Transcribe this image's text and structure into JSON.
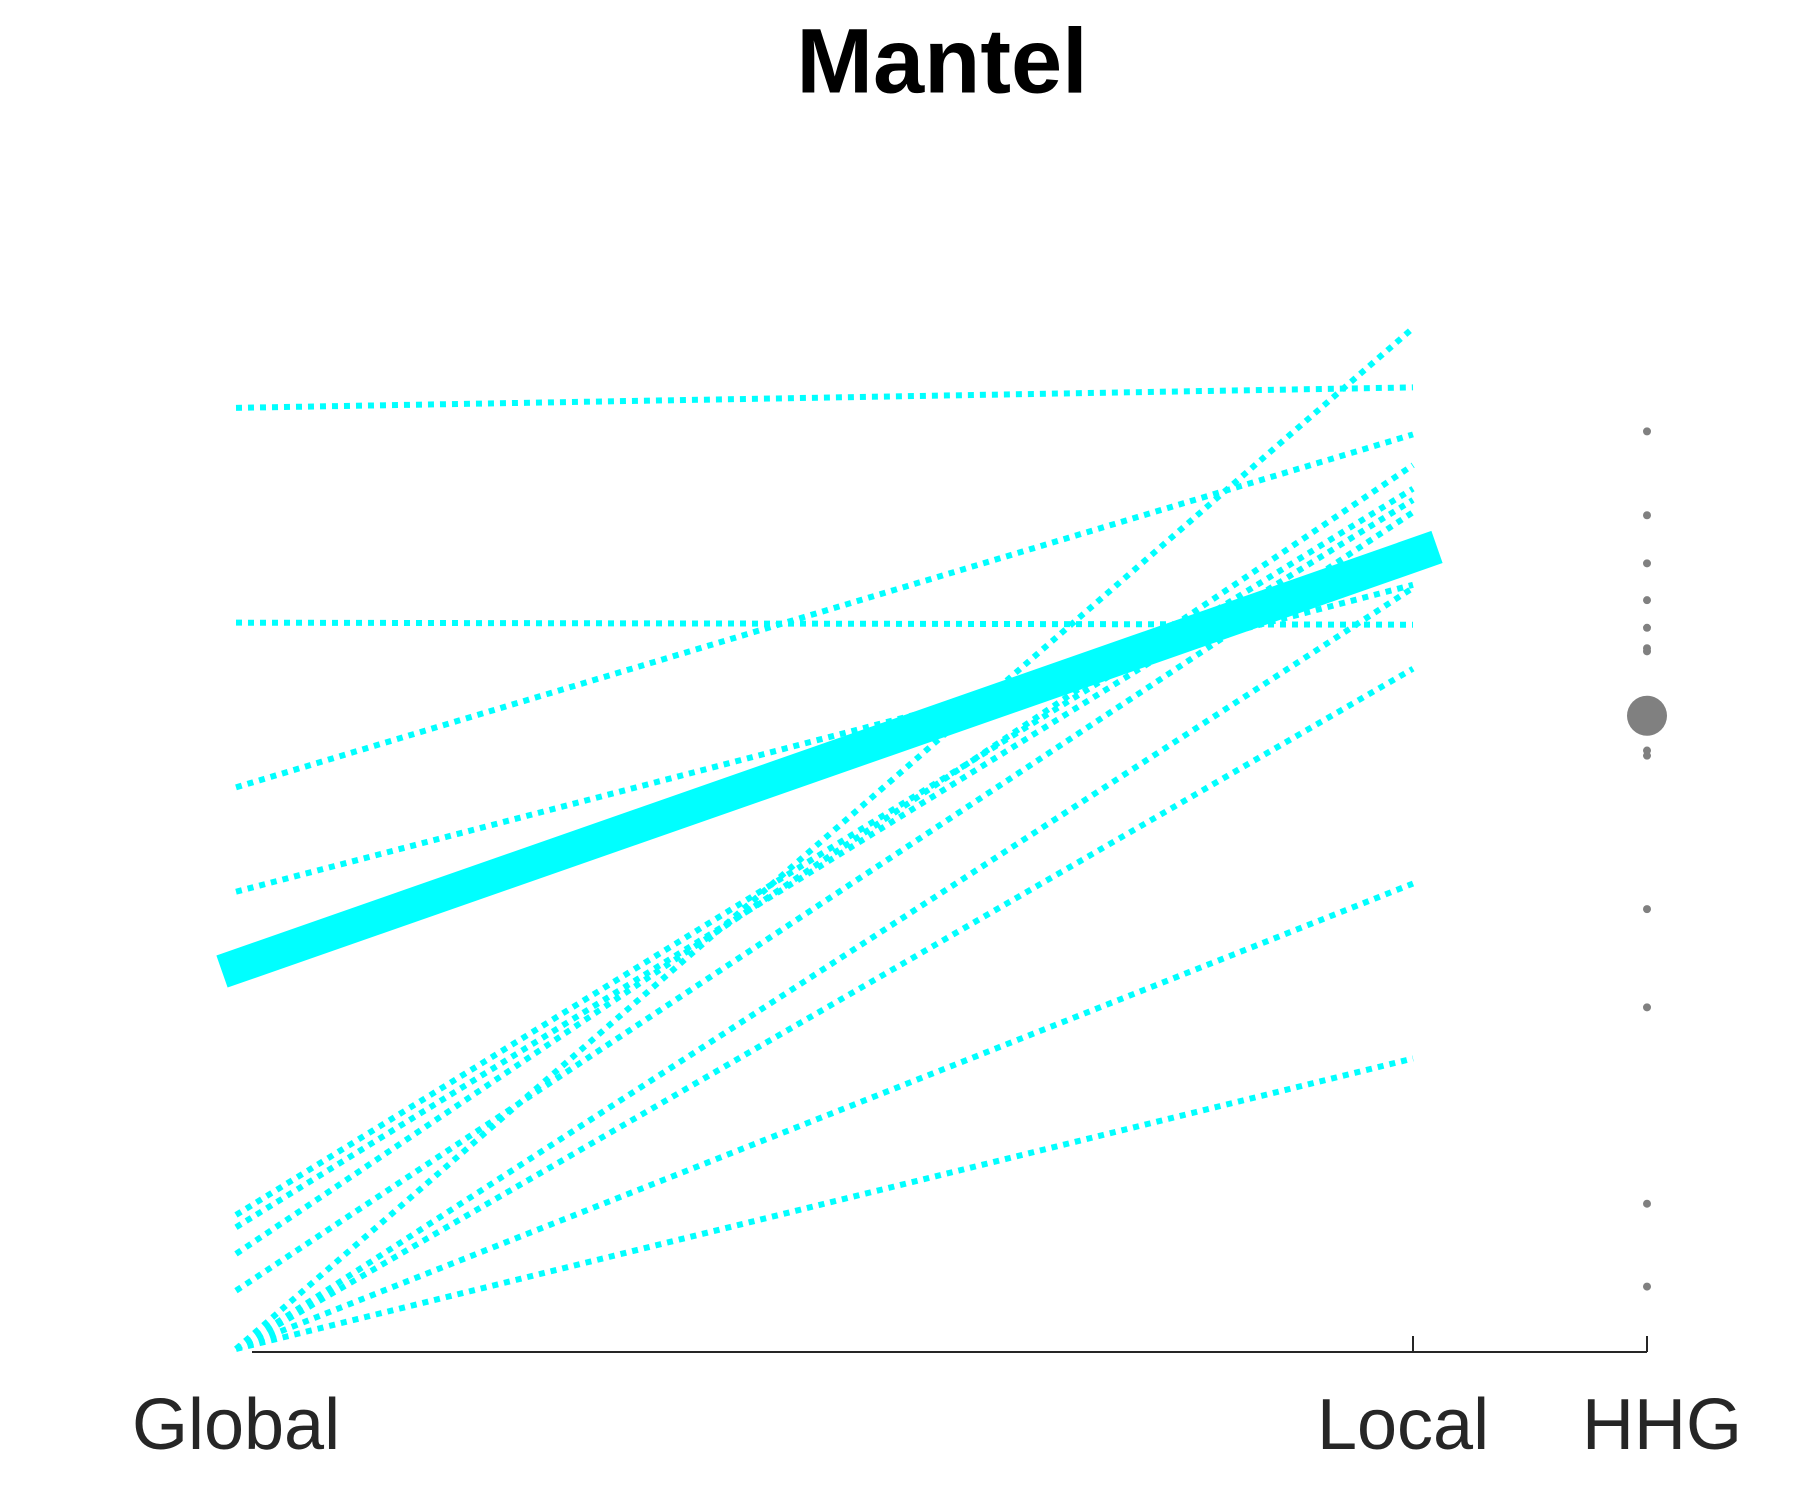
{
  "chart_data": {
    "type": "slope",
    "title": "Mantel",
    "categories": [
      "Global",
      "Local",
      "HHG"
    ],
    "ylim": [
      0,
      1
    ],
    "line_color": "#00ffff",
    "point_color": "#808080",
    "lines": [
      [
        0.92,
        0.94
      ],
      [
        0.71,
        0.708
      ],
      [
        0.549,
        0.894
      ],
      [
        0.447,
        0.747
      ],
      [
        0,
        0.998
      ],
      [
        0.131,
        0.841
      ],
      [
        0.119,
        0.83
      ],
      [
        0.093,
        0.864
      ],
      [
        0.057,
        0.818
      ],
      [
        0,
        0.744
      ],
      [
        0,
        0.665
      ],
      [
        0,
        0.455
      ],
      [
        0,
        0.284
      ]
    ],
    "mean_line": [
      0.369,
      0.784
    ],
    "hhg_points": [
      0.897,
      0.815,
      0.768,
      0.732,
      0.705,
      0.685,
      0.682,
      0.585,
      0.58,
      0.43,
      0.334,
      0.142,
      0.061
    ],
    "hhg_mean": 0.619
  }
}
